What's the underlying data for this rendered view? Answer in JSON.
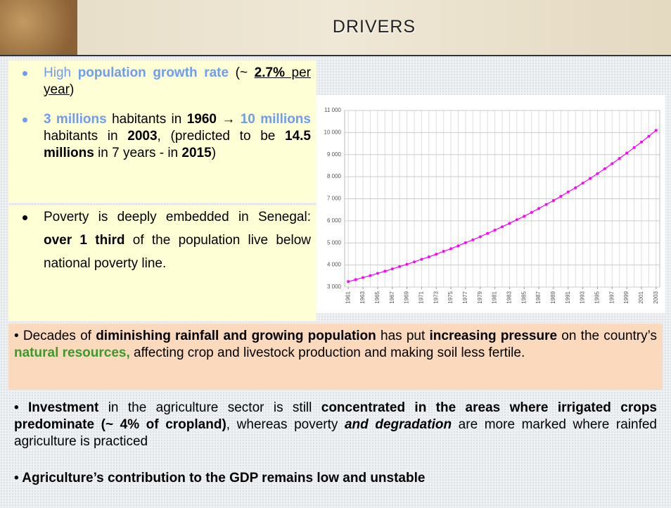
{
  "header": {
    "title": "DRIVERS"
  },
  "bullets": [
    [
      "High ",
      "population growth rate",
      " (~ ",
      "2.7%",
      " per year",
      ")"
    ],
    [
      "3 millions",
      " habitants in ",
      "1960",
      " → ",
      "10 millions",
      " habitants in ",
      "2003",
      ", (predicted to be ",
      "14.5 millions",
      " in 7 years - in ",
      "2015",
      ")"
    ],
    [
      "Poverty is deeply embedded in Senegal: ",
      "over 1 third",
      " of the population live below national poverty line."
    ]
  ],
  "paragraphs": [
    [
      "• Decades of ",
      "diminishing rainfall and growing population",
      " has put ",
      "increasing pressure",
      " on the country’s ",
      "natural resources,",
      " affecting crop and livestock production and making soil less fertile."
    ],
    [
      "• ",
      "Investment",
      " in the agriculture sector is still ",
      "concentrated in the areas where irrigated crops predominate (~ 4% of cropland)",
      ", whereas poverty ",
      "and degradation",
      " are more marked where rainfed agriculture is practiced"
    ],
    [
      "• Agriculture’s contribution to the GDP remains low and unstable"
    ]
  ],
  "chart_data": {
    "type": "line",
    "x": [
      1961,
      1962,
      1963,
      1964,
      1965,
      1966,
      1967,
      1968,
      1969,
      1970,
      1971,
      1972,
      1973,
      1974,
      1975,
      1976,
      1977,
      1978,
      1979,
      1980,
      1981,
      1982,
      1983,
      1984,
      1985,
      1986,
      1987,
      1988,
      1989,
      1990,
      1991,
      1992,
      1993,
      1994,
      1995,
      1996,
      1997,
      1998,
      1999,
      2000,
      2001,
      2002,
      2003
    ],
    "series": [
      {
        "color": "#ff00ff",
        "values": [
          3250,
          3340,
          3430,
          3520,
          3620,
          3720,
          3820,
          3930,
          4030,
          4140,
          4260,
          4370,
          4490,
          4620,
          4740,
          4870,
          5010,
          5140,
          5280,
          5430,
          5580,
          5730,
          5890,
          6050,
          6210,
          6380,
          6560,
          6740,
          6920,
          7110,
          7310,
          7500,
          7710,
          7920,
          8140,
          8360,
          8590,
          8830,
          9070,
          9320,
          9570,
          9830,
          10100
        ]
      }
    ],
    "xlim": [
      1960.5,
      2003.5
    ],
    "xticks": [
      1961,
      1963,
      1965,
      1967,
      1969,
      1971,
      1973,
      1975,
      1977,
      1979,
      1981,
      1983,
      1985,
      1987,
      1989,
      1991,
      1993,
      1995,
      1997,
      1999,
      2001,
      2003
    ],
    "ylim": [
      3000,
      11000
    ],
    "yticks": [
      {
        "value": 3000,
        "label": "3 000"
      },
      {
        "value": 4000,
        "label": "4 000"
      },
      {
        "value": 5000,
        "label": "5 000"
      },
      {
        "value": 6000,
        "label": "6 000"
      },
      {
        "value": 7000,
        "label": "7 000"
      },
      {
        "value": 8000,
        "label": "8 000"
      },
      {
        "value": 9000,
        "label": "9 000"
      },
      {
        "value": 10000,
        "label": "10 000"
      },
      {
        "value": 11000,
        "label": "11 000"
      }
    ],
    "grid": true
  }
}
